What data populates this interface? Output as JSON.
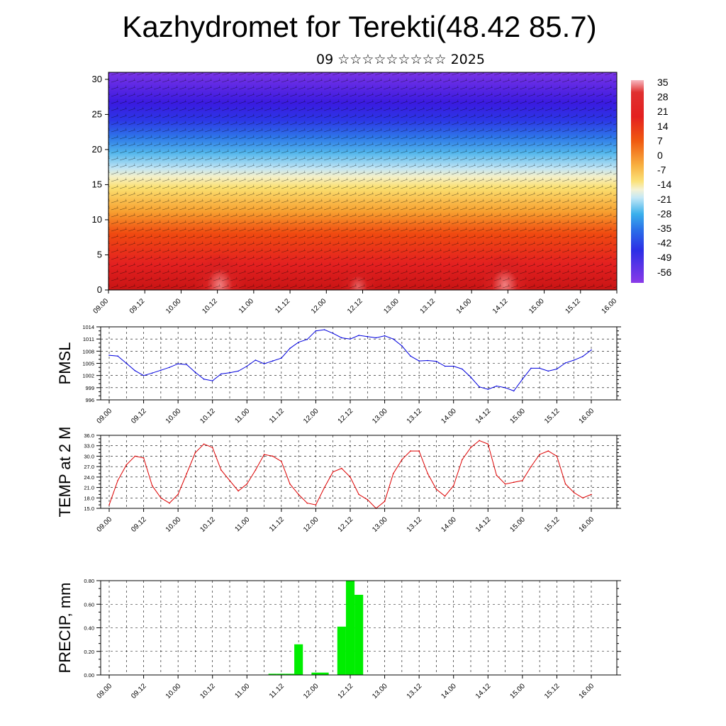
{
  "title": "Kazhydromet for Terekti(48.42 85.7)",
  "subtitle": "09 ☆☆☆☆☆☆☆☆☆ 2025",
  "colors": {
    "pmsl": "#0000dd",
    "temp": "#dd0000",
    "precip": "#00ee00"
  },
  "chart_data": [
    {
      "type": "heatmap",
      "name": "cross-section",
      "yticks": [
        0,
        5,
        10,
        15,
        20,
        25,
        30
      ],
      "ylim": [
        0,
        31
      ],
      "xtick_labels": [
        "09.00",
        "09.12",
        "10.00",
        "10.12",
        "11.00",
        "11.12",
        "12.00",
        "12.12",
        "13.00",
        "13.12",
        "14.00",
        "14.12",
        "15.00",
        "15.12",
        "16.00"
      ],
      "colorbar_labels": [
        "35",
        "28",
        "21",
        "14",
        "7",
        "0",
        "-7",
        "-14",
        "-21",
        "-28",
        "-35",
        "-42",
        "-49",
        "-56"
      ]
    },
    {
      "type": "line",
      "ylabel": "PMSL",
      "yticks": [
        996,
        999,
        1002,
        1005,
        1008,
        1011,
        1014
      ],
      "ylim": [
        996,
        1014
      ],
      "xtick_labels": [
        "09.00",
        "09.12",
        "10.00",
        "10.12",
        "11.00",
        "11.12",
        "12.00",
        "12.12",
        "13.00",
        "13.12",
        "14.00",
        "14.12",
        "15.00",
        "15.12",
        "16.00"
      ],
      "x_hours": [
        0,
        3,
        6,
        9,
        12,
        15,
        18,
        21,
        24,
        27,
        30,
        33,
        36,
        39,
        42,
        45,
        48,
        51,
        54,
        57,
        60,
        63,
        66,
        69,
        72,
        75,
        78,
        81,
        84,
        87,
        90,
        93,
        96,
        99,
        102,
        105,
        108,
        111,
        114,
        117,
        120,
        123,
        126,
        129,
        132,
        135,
        138,
        141,
        144,
        147,
        150,
        153,
        156,
        159,
        162,
        165,
        168
      ],
      "values": [
        1007.0,
        1006.8,
        1005.0,
        1003.2,
        1002.0,
        1002.6,
        1003.3,
        1004.0,
        1004.9,
        1004.7,
        1002.8,
        1001.1,
        1000.7,
        1002.4,
        1002.7,
        1003.1,
        1004.3,
        1005.8,
        1004.9,
        1005.6,
        1006.3,
        1008.7,
        1010.2,
        1010.9,
        1013.0,
        1013.3,
        1012.4,
        1011.3,
        1011.0,
        1011.9,
        1011.6,
        1011.3,
        1011.8,
        1011.0,
        1009.3,
        1006.8,
        1005.6,
        1005.7,
        1005.5,
        1004.3,
        1004.3,
        1003.6,
        1001.6,
        999.2,
        998.6,
        999.4,
        999.0,
        998.2,
        1001.1,
        1003.8,
        1003.8,
        1003.1,
        1003.6,
        1005.1,
        1005.8,
        1006.7,
        1008.3
      ]
    },
    {
      "type": "line",
      "ylabel": "TEMP at 2 M",
      "yticks": [
        "15.0",
        "18.0",
        "21.0",
        "24.0",
        "27.0",
        "30.0",
        "33.0",
        "36.0"
      ],
      "ylim": [
        15,
        36
      ],
      "xtick_labels": [
        "09.00",
        "09.12",
        "10.00",
        "10.12",
        "11.00",
        "11.12",
        "12.00",
        "12.12",
        "13.00",
        "13.12",
        "14.00",
        "14.12",
        "15.00",
        "15.12",
        "16.00"
      ],
      "x_hours": [
        0,
        3,
        6,
        9,
        12,
        15,
        18,
        21,
        24,
        27,
        30,
        33,
        36,
        39,
        42,
        45,
        48,
        51,
        54,
        57,
        60,
        63,
        66,
        69,
        72,
        75,
        78,
        81,
        84,
        87,
        90,
        93,
        96,
        99,
        102,
        105,
        108,
        111,
        114,
        117,
        120,
        123,
        126,
        129,
        132,
        135,
        138,
        141,
        144,
        147,
        150,
        153,
        156,
        159,
        162,
        165,
        168
      ],
      "values": [
        16.0,
        23.0,
        27.5,
        30.0,
        29.5,
        21.5,
        18.0,
        16.5,
        19.0,
        25.0,
        31.0,
        33.5,
        32.5,
        26.0,
        23.0,
        20.0,
        22.0,
        26.0,
        30.5,
        30.0,
        28.5,
        22.0,
        19.0,
        16.5,
        16.0,
        21.0,
        25.5,
        26.5,
        24.0,
        19.0,
        17.5,
        15.0,
        17.0,
        25.0,
        29.0,
        31.5,
        31.5,
        25.0,
        20.5,
        18.5,
        21.5,
        29.0,
        32.5,
        34.5,
        33.5,
        24.5,
        22.0,
        22.5,
        23.0,
        27.0,
        30.5,
        31.5,
        30.0,
        22.0,
        19.5,
        18.0,
        19.0
      ]
    },
    {
      "type": "bar",
      "ylabel": "PRECIP, mm",
      "yticks": [
        "0.00",
        "0.20",
        "0.40",
        "0.60",
        "0.80"
      ],
      "ylim": [
        0,
        0.8
      ],
      "xtick_labels": [
        "09.00",
        "09.12",
        "10.00",
        "10.12",
        "11.00",
        "11.12",
        "12.00",
        "12.12",
        "13.00",
        "13.12",
        "14.00",
        "14.12",
        "15.00",
        "15.12",
        "16.00"
      ],
      "x_hours": [
        57,
        60,
        63,
        66,
        72,
        75,
        81,
        84,
        87,
        90
      ],
      "values": [
        0.01,
        0.01,
        0.01,
        0.26,
        0.02,
        0.02,
        0.41,
        0.8,
        0.68,
        0.0
      ]
    }
  ]
}
